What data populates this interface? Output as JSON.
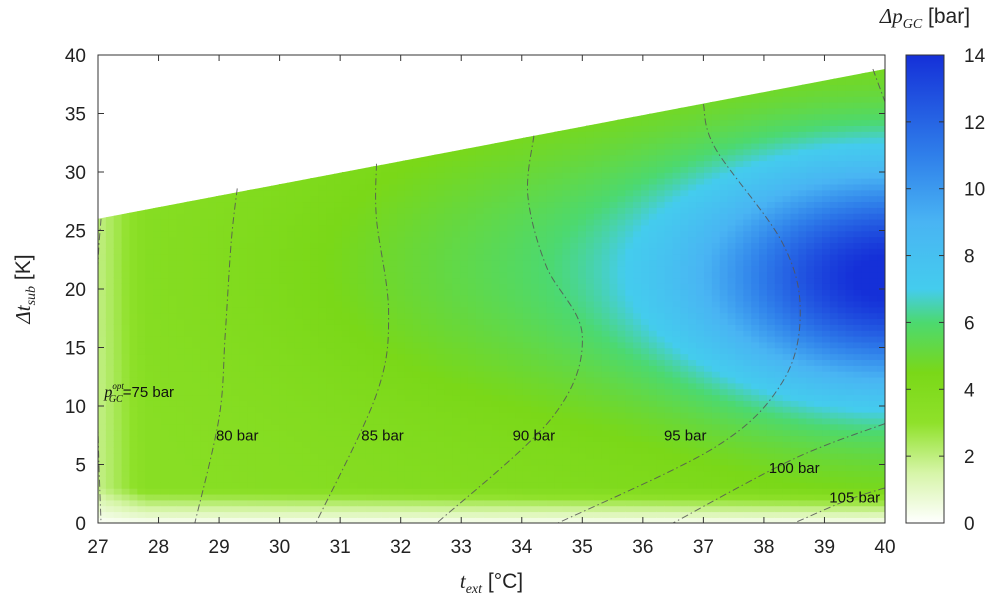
{
  "chart_data": {
    "type": "heatmap",
    "xlabel": {
      "symbol": "t",
      "sub": "ext",
      "unit": " [°C]"
    },
    "ylabel": {
      "symbol": "Δt",
      "sub": "sub",
      "unit": " [K]"
    },
    "xlim": [
      27,
      40
    ],
    "ylim": [
      0,
      40
    ],
    "x_ticks": [
      "27",
      "28",
      "29",
      "30",
      "31",
      "32",
      "33",
      "34",
      "35",
      "36",
      "37",
      "38",
      "39",
      "40"
    ],
    "y_ticks": [
      "0",
      "5",
      "10",
      "15",
      "20",
      "25",
      "30",
      "35",
      "40"
    ],
    "valid_region_upper_boundary": [
      [
        27,
        26
      ],
      [
        40,
        38.8
      ]
    ],
    "colorbar": {
      "title": {
        "symbol": "Δp",
        "sub": "GC",
        "unit": " [bar]"
      },
      "range": [
        0,
        14
      ],
      "ticks": [
        "0",
        "2",
        "4",
        "6",
        "8",
        "10",
        "12",
        "14"
      ],
      "colors": [
        {
          "value": 0,
          "color": "#ffffff"
        },
        {
          "value": 1.5,
          "color": "#d6f5a8"
        },
        {
          "value": 3,
          "color": "#8fe12a"
        },
        {
          "value": 4.5,
          "color": "#7ad818"
        },
        {
          "value": 6,
          "color": "#4cd970"
        },
        {
          "value": 7,
          "color": "#44ccee"
        },
        {
          "value": 9,
          "color": "#49b4f3"
        },
        {
          "value": 11,
          "color": "#2f7fea"
        },
        {
          "value": 14,
          "color": "#1530d8"
        }
      ]
    },
    "contours": [
      {
        "label": "75 bar",
        "value": 75,
        "points": [
          [
            27.05,
            26
          ],
          [
            27.0,
            22
          ],
          [
            27.0,
            15
          ],
          [
            27.0,
            8
          ],
          [
            27.05,
            0
          ]
        ]
      },
      {
        "label": "80 bar",
        "value": 80,
        "points": [
          [
            29.3,
            28.6
          ],
          [
            29.2,
            24
          ],
          [
            29.1,
            16
          ],
          [
            29.0,
            9
          ],
          [
            28.6,
            0
          ]
        ]
      },
      {
        "label": "85 bar",
        "value": 85,
        "points": [
          [
            31.6,
            30.7
          ],
          [
            31.6,
            26
          ],
          [
            31.8,
            18
          ],
          [
            31.6,
            11
          ],
          [
            30.6,
            0
          ]
        ]
      },
      {
        "label": "90 bar",
        "value": 90,
        "points": [
          [
            34.2,
            33.1
          ],
          [
            34.1,
            28
          ],
          [
            34.4,
            22
          ],
          [
            35.0,
            16
          ],
          [
            34.5,
            9
          ],
          [
            32.6,
            0
          ]
        ]
      },
      {
        "label": "95 bar",
        "value": 95,
        "points": [
          [
            37.0,
            35.8
          ],
          [
            37.2,
            32
          ],
          [
            38.3,
            24
          ],
          [
            38.6,
            18
          ],
          [
            38.3,
            12
          ],
          [
            37.2,
            6.5
          ],
          [
            34.6,
            0
          ]
        ]
      },
      {
        "label": "100 bar",
        "value": 100,
        "points": [
          [
            40,
            8.5
          ],
          [
            38.5,
            5.5
          ],
          [
            36.5,
            0
          ]
        ]
      },
      {
        "label": "105 bar",
        "value": 105,
        "points": [
          [
            40,
            3
          ],
          [
            39.4,
            2
          ],
          [
            38.5,
            0
          ]
        ]
      },
      {
        "label": "",
        "value": 100,
        "points": [
          [
            39.8,
            38.8
          ],
          [
            40,
            36
          ]
        ]
      }
    ],
    "contour_labels": [
      {
        "text": "80 bar",
        "x": 29.3,
        "y": 7.5
      },
      {
        "text": "85 bar",
        "x": 31.7,
        "y": 7.5
      },
      {
        "text": "90 bar",
        "x": 34.2,
        "y": 7.5
      },
      {
        "text": "95 bar",
        "x": 36.7,
        "y": 7.5
      },
      {
        "text": "100 bar",
        "x": 38.5,
        "y": 4.7
      },
      {
        "text": "105 bar",
        "x": 39.5,
        "y": 2.2
      }
    ],
    "first_label": {
      "symbol": "p",
      "sub": "GC",
      "sup": "opt",
      "text": "=75 bar",
      "x": 27.6,
      "y": 11.2
    }
  }
}
